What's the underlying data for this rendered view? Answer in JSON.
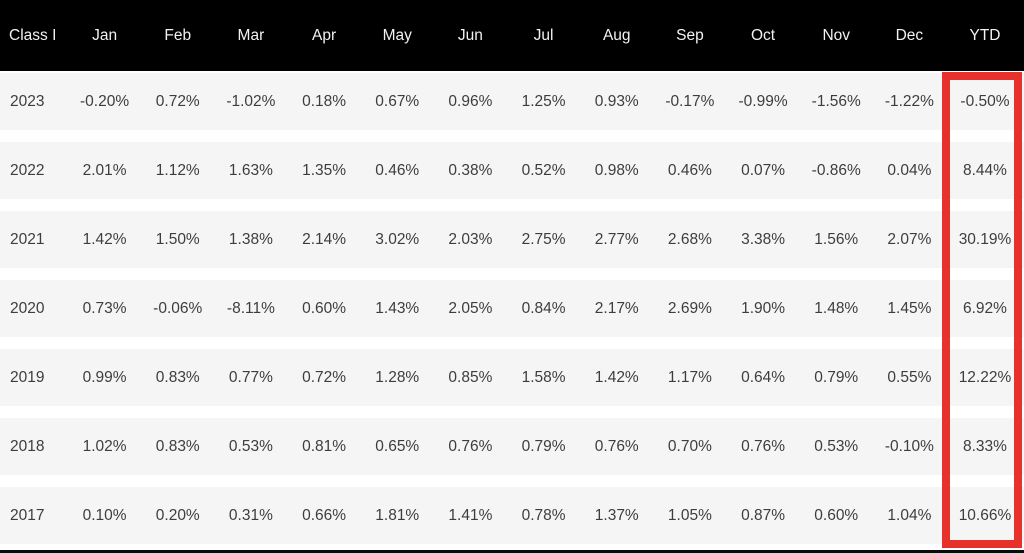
{
  "colors": {
    "header_bg": "#000000",
    "header_text": "#f2f2f2",
    "row_bg": "#f5f5f6",
    "row_gap": "#ffffff",
    "cell_text": "#3d3d3d",
    "highlight_red": "#e6322a"
  },
  "chart_data": {
    "type": "table",
    "columns": [
      "Class I",
      "Jan",
      "Feb",
      "Mar",
      "Apr",
      "May",
      "Jun",
      "Jul",
      "Aug",
      "Sep",
      "Oct",
      "Nov",
      "Dec",
      "YTD"
    ],
    "rows": [
      {
        "year": "2023",
        "values": [
          "-0.20%",
          "0.72%",
          "-1.02%",
          "0.18%",
          "0.67%",
          "0.96%",
          "1.25%",
          "0.93%",
          "-0.17%",
          "-0.99%",
          "-1.56%",
          "-1.22%",
          "-0.50%"
        ]
      },
      {
        "year": "2022",
        "values": [
          "2.01%",
          "1.12%",
          "1.63%",
          "1.35%",
          "0.46%",
          "0.38%",
          "0.52%",
          "0.98%",
          "0.46%",
          "0.07%",
          "-0.86%",
          "0.04%",
          "8.44%"
        ]
      },
      {
        "year": "2021",
        "values": [
          "1.42%",
          "1.50%",
          "1.38%",
          "2.14%",
          "3.02%",
          "2.03%",
          "2.75%",
          "2.77%",
          "2.68%",
          "3.38%",
          "1.56%",
          "2.07%",
          "30.19%"
        ]
      },
      {
        "year": "2020",
        "values": [
          "0.73%",
          "-0.06%",
          "-8.11%",
          "0.60%",
          "1.43%",
          "2.05%",
          "0.84%",
          "2.17%",
          "2.69%",
          "1.90%",
          "1.48%",
          "1.45%",
          "6.92%"
        ]
      },
      {
        "year": "2019",
        "values": [
          "0.99%",
          "0.83%",
          "0.77%",
          "0.72%",
          "1.28%",
          "0.85%",
          "1.58%",
          "1.42%",
          "1.17%",
          "0.64%",
          "0.79%",
          "0.55%",
          "12.22%"
        ]
      },
      {
        "year": "2018",
        "values": [
          "1.02%",
          "0.83%",
          "0.53%",
          "0.81%",
          "0.65%",
          "0.76%",
          "0.79%",
          "0.76%",
          "0.70%",
          "0.76%",
          "0.53%",
          "-0.10%",
          "8.33%"
        ]
      },
      {
        "year": "2017",
        "values": [
          "0.10%",
          "0.20%",
          "0.31%",
          "0.66%",
          "1.81%",
          "1.41%",
          "0.78%",
          "1.37%",
          "1.05%",
          "0.87%",
          "0.60%",
          "1.04%",
          "10.66%"
        ]
      }
    ],
    "highlight": {
      "column": "YTD",
      "style": "red-outline-box",
      "color": "#e6322a"
    },
    "layout": {
      "header_row": "black background, white text",
      "body_rows": "light gray bands separated by white gaps",
      "alignment": "first column left, others centered"
    }
  }
}
